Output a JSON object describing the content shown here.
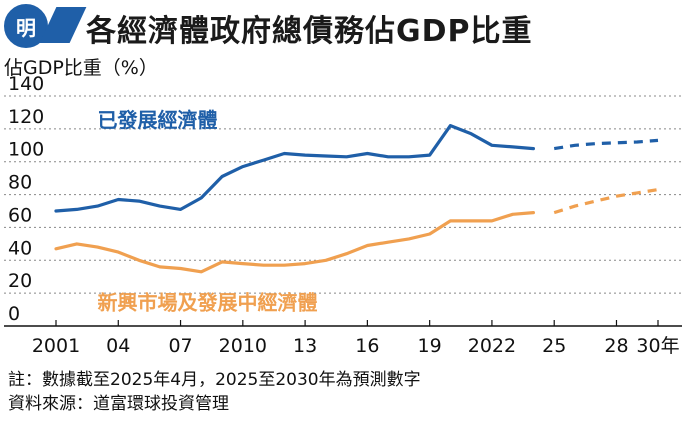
{
  "header": {
    "logo_text": "明",
    "title": "各經濟體政府總債務佔GDP比重"
  },
  "chart_data": {
    "type": "line",
    "ylabel": "佔GDP比重（%）",
    "ylim": [
      0,
      140
    ],
    "y_ticks": [
      "0",
      "20",
      "40",
      "60",
      "80",
      "100",
      "120",
      "140"
    ],
    "xlim": [
      2001,
      2030
    ],
    "x_ticks": [
      {
        "x": 2001,
        "label": "2001"
      },
      {
        "x": 2004,
        "label": "04"
      },
      {
        "x": 2007,
        "label": "07"
      },
      {
        "x": 2010,
        "label": "2010"
      },
      {
        "x": 2013,
        "label": "13"
      },
      {
        "x": 2016,
        "label": "16"
      },
      {
        "x": 2019,
        "label": "19"
      },
      {
        "x": 2022,
        "label": "2022"
      },
      {
        "x": 2025,
        "label": "25"
      },
      {
        "x": 2028,
        "label": "28"
      },
      {
        "x": 2030,
        "label": "30年"
      }
    ],
    "grid": "horizontal",
    "series": [
      {
        "name": "已發展經濟體",
        "color": "#1f5fa8",
        "actual": [
          [
            2001,
            70
          ],
          [
            2002,
            71
          ],
          [
            2003,
            73
          ],
          [
            2004,
            77
          ],
          [
            2005,
            76
          ],
          [
            2006,
            73
          ],
          [
            2007,
            71
          ],
          [
            2008,
            78
          ],
          [
            2009,
            91
          ],
          [
            2010,
            97
          ],
          [
            2011,
            101
          ],
          [
            2012,
            105
          ],
          [
            2013,
            104
          ],
          [
            2014,
            103.5
          ],
          [
            2015,
            103
          ],
          [
            2016,
            105
          ],
          [
            2017,
            103
          ],
          [
            2018,
            103
          ],
          [
            2019,
            104
          ],
          [
            2020,
            122
          ],
          [
            2021,
            117
          ],
          [
            2022,
            110
          ],
          [
            2023,
            109
          ],
          [
            2024,
            108
          ]
        ],
        "projected": [
          [
            2025,
            108
          ],
          [
            2026,
            110
          ],
          [
            2027,
            111
          ],
          [
            2028,
            111.5
          ],
          [
            2029,
            112
          ],
          [
            2030,
            113
          ]
        ]
      },
      {
        "name": "新興市場及發展中經濟體",
        "color": "#f0a050",
        "actual": [
          [
            2001,
            47
          ],
          [
            2002,
            50
          ],
          [
            2003,
            48
          ],
          [
            2004,
            45
          ],
          [
            2005,
            40
          ],
          [
            2006,
            36
          ],
          [
            2007,
            35
          ],
          [
            2008,
            33
          ],
          [
            2009,
            39
          ],
          [
            2010,
            38
          ],
          [
            2011,
            37
          ],
          [
            2012,
            37
          ],
          [
            2013,
            38
          ],
          [
            2014,
            40
          ],
          [
            2015,
            44
          ],
          [
            2016,
            49
          ],
          [
            2017,
            51
          ],
          [
            2018,
            53
          ],
          [
            2019,
            56
          ],
          [
            2020,
            64
          ],
          [
            2021,
            64
          ],
          [
            2022,
            64
          ],
          [
            2023,
            68
          ],
          [
            2024,
            69
          ]
        ],
        "projected": [
          [
            2025,
            69
          ],
          [
            2026,
            73
          ],
          [
            2027,
            76
          ],
          [
            2028,
            79
          ],
          [
            2029,
            81
          ],
          [
            2030,
            83
          ]
        ]
      }
    ]
  },
  "notes": {
    "note": "註：數據截至2025年4月，2025至2030年為預測數字",
    "source": "資料來源：道富環球投資管理"
  }
}
